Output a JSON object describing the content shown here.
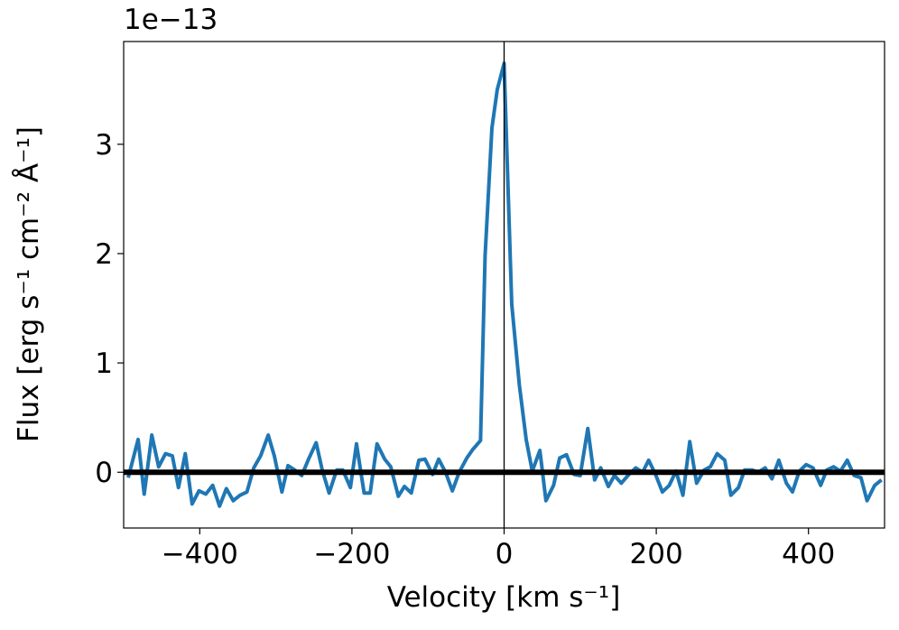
{
  "chart_data": {
    "type": "line",
    "offset_label": "1e−13",
    "x_label": "Velocity [km s⁻¹]",
    "y_label": "Flux [erg s⁻¹ cm⁻² Å⁻¹]",
    "xlim": [
      -500,
      500
    ],
    "ylim": [
      -0.51,
      3.94
    ],
    "xticks": [
      {
        "value": -400,
        "label": "−400"
      },
      {
        "value": -200,
        "label": "−200"
      },
      0,
      200,
      400
    ],
    "yticks": [
      0,
      1,
      2,
      3
    ],
    "hline": 0,
    "vline": 0,
    "x": [
      -494,
      -481,
      -473,
      -463,
      -454,
      -445,
      -436,
      -428,
      -419,
      -410,
      -401,
      -392,
      -383,
      -374,
      -365,
      -356,
      -347,
      -338,
      -329,
      -320,
      -310,
      -302,
      -292,
      -284,
      -275,
      -266,
      -257,
      -247,
      -239,
      -230,
      -220,
      -212,
      -202,
      -194,
      -184,
      -176,
      -167,
      -157,
      -149,
      -139,
      -131,
      -122,
      -112,
      -104,
      -94,
      -86,
      -77,
      -68,
      -59,
      -49,
      -41,
      -31,
      -25,
      -16,
      -9,
      0,
      10,
      20,
      29,
      37,
      47,
      55,
      65,
      73,
      82,
      92,
      100,
      110,
      119,
      127,
      137,
      145,
      154,
      164,
      173,
      182,
      190,
      199,
      208,
      217,
      226,
      235,
      244,
      253,
      263,
      271,
      280,
      290,
      298,
      308,
      316,
      326,
      334,
      343,
      352,
      361,
      371,
      379,
      388,
      397,
      406,
      416,
      424,
      433,
      442,
      451,
      460,
      469,
      477,
      487,
      496
    ],
    "series": [
      {
        "name": "flux",
        "color": "#1f77b4",
        "values": [
          -0.05,
          0.3,
          -0.2,
          0.34,
          0.05,
          0.17,
          0.15,
          -0.14,
          0.17,
          -0.29,
          -0.17,
          -0.2,
          -0.12,
          -0.31,
          -0.15,
          -0.26,
          -0.21,
          -0.18,
          0.04,
          0.15,
          0.34,
          0.15,
          -0.18,
          0.06,
          0.02,
          -0.03,
          0.12,
          0.27,
          0.02,
          -0.19,
          0.02,
          0.02,
          -0.14,
          0.26,
          -0.19,
          -0.19,
          0.26,
          0.12,
          0.05,
          -0.22,
          -0.13,
          -0.19,
          0.11,
          0.12,
          -0.02,
          0.12,
          0.0,
          -0.17,
          0.0,
          0.13,
          0.21,
          0.29,
          1.98,
          3.15,
          3.5,
          3.74,
          1.54,
          0.8,
          0.3,
          0.01,
          0.2,
          -0.26,
          -0.12,
          0.13,
          0.16,
          -0.02,
          -0.03,
          0.4,
          -0.07,
          0.04,
          -0.13,
          -0.03,
          -0.1,
          -0.02,
          0.04,
          0.0,
          0.11,
          -0.02,
          -0.18,
          -0.12,
          0.01,
          -0.21,
          0.28,
          -0.1,
          0.02,
          0.05,
          0.17,
          0.11,
          -0.21,
          -0.14,
          0.02,
          0.02,
          0.0,
          0.04,
          -0.06,
          0.11,
          -0.1,
          -0.18,
          0.01,
          0.07,
          0.04,
          -0.12,
          0.02,
          0.05,
          0.01,
          0.11,
          -0.03,
          -0.05,
          -0.26,
          -0.12,
          -0.07
        ]
      }
    ]
  }
}
